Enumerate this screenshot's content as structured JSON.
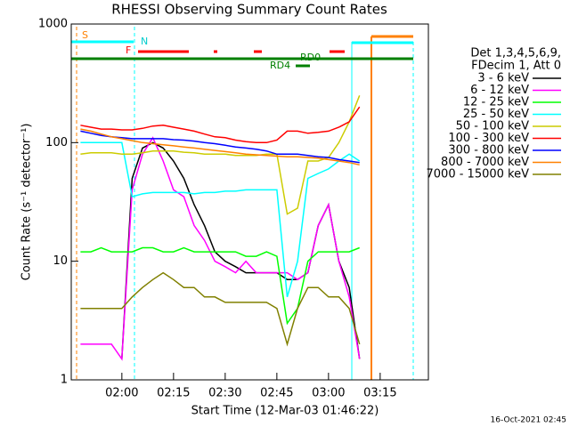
{
  "chart_data": {
    "type": "line",
    "title": "RHESSI Observing Summary Count Rates",
    "x_label": "Start Time (12-Mar-03 01:46:22)",
    "y_label": "Count Rate (s⁻¹ detector⁻¹)",
    "legend_title": [
      "Det 1,3,4,5,6,9,",
      "FDecim 1, Att 0"
    ],
    "timestamp": "16-Oct-2021 02:45",
    "flag_labels": [
      "S",
      "N",
      "F",
      "RD0",
      "RD4"
    ],
    "log_y": true,
    "xlim": [
      105.3,
      209
    ],
    "ylim": [
      1,
      1000
    ],
    "xticks": [
      {
        "value": 120,
        "label": "02:00"
      },
      {
        "value": 135,
        "label": "02:15"
      },
      {
        "value": 150,
        "label": "02:30"
      },
      {
        "value": 165,
        "label": "02:45"
      },
      {
        "value": 180,
        "label": "03:00"
      },
      {
        "value": 195,
        "label": "03:15"
      }
    ],
    "yticks": [
      1,
      10,
      100,
      1000
    ],
    "x": [
      108,
      111,
      114,
      117,
      120,
      123,
      126,
      129,
      132,
      135,
      138,
      141,
      144,
      147,
      150,
      153,
      156,
      159,
      162,
      165,
      168,
      171,
      174,
      177,
      180,
      183,
      186,
      189
    ],
    "series": [
      {
        "name": "3 - 6 keV",
        "color": "#000000",
        "values": [
          null,
          null,
          null,
          null,
          1.5,
          50,
          90,
          100,
          90,
          70,
          50,
          30,
          20,
          12,
          10,
          9,
          8,
          8,
          8,
          8,
          7,
          7,
          8,
          20,
          30,
          10,
          6,
          1.5
        ]
      },
      {
        "name": "6 - 12 keV",
        "color": "#ff00ff",
        "values": [
          2,
          2,
          2,
          2,
          1.5,
          40,
          80,
          110,
          70,
          40,
          35,
          20,
          15,
          10,
          9,
          8,
          10,
          8,
          8,
          8,
          8,
          7,
          8,
          20,
          30,
          10,
          5,
          1.5
        ]
      },
      {
        "name": "12 - 25 keV",
        "color": "#00ff00",
        "values": [
          12,
          12,
          13,
          12,
          12,
          12,
          13,
          13,
          12,
          12,
          13,
          12,
          12,
          12,
          12,
          12,
          11,
          11,
          12,
          11,
          3,
          4,
          10,
          12,
          12,
          12,
          12,
          13
        ]
      },
      {
        "name": "25 - 50 keV",
        "color": "#00ffff",
        "values": [
          100,
          100,
          100,
          100,
          100,
          35,
          37,
          38,
          38,
          38,
          38,
          37,
          38,
          38,
          39,
          39,
          40,
          40,
          40,
          40,
          5,
          10,
          50,
          55,
          60,
          70,
          80,
          70
        ]
      },
      {
        "name": "50 - 100 keV",
        "color": "#cccc00",
        "values": [
          80,
          82,
          82,
          82,
          80,
          80,
          82,
          85,
          85,
          85,
          83,
          82,
          80,
          80,
          80,
          78,
          78,
          78,
          80,
          80,
          25,
          28,
          70,
          70,
          75,
          100,
          150,
          250
        ]
      },
      {
        "name": "100 - 300 keV",
        "color": "#ff0000",
        "values": [
          140,
          135,
          130,
          130,
          128,
          128,
          132,
          138,
          140,
          135,
          130,
          125,
          118,
          112,
          110,
          105,
          102,
          100,
          100,
          105,
          125,
          125,
          120,
          122,
          125,
          135,
          150,
          200
        ]
      },
      {
        "name": "300 - 800 keV",
        "color": "#0000ff",
        "values": [
          125,
          120,
          115,
          112,
          110,
          108,
          108,
          108,
          108,
          106,
          105,
          103,
          100,
          98,
          95,
          92,
          90,
          88,
          85,
          80,
          80,
          80,
          78,
          76,
          75,
          72,
          70,
          68
        ]
      },
      {
        "name": "800 - 7000 keV",
        "color": "#ff8000",
        "values": [
          130,
          125,
          118,
          112,
          108,
          104,
          100,
          98,
          96,
          94,
          92,
          90,
          88,
          86,
          84,
          82,
          80,
          79,
          78,
          77,
          76,
          76,
          75,
          74,
          72,
          70,
          68,
          65
        ]
      },
      {
        "name": "7000 - 15000 keV",
        "color": "#808000",
        "values": [
          4,
          4,
          4,
          4,
          4,
          5,
          6,
          7,
          8,
          7,
          6,
          6,
          5,
          5,
          4.5,
          4.5,
          4.5,
          4.5,
          4.5,
          4,
          2,
          4,
          6,
          6,
          5,
          5,
          4,
          2
        ]
      }
    ]
  }
}
